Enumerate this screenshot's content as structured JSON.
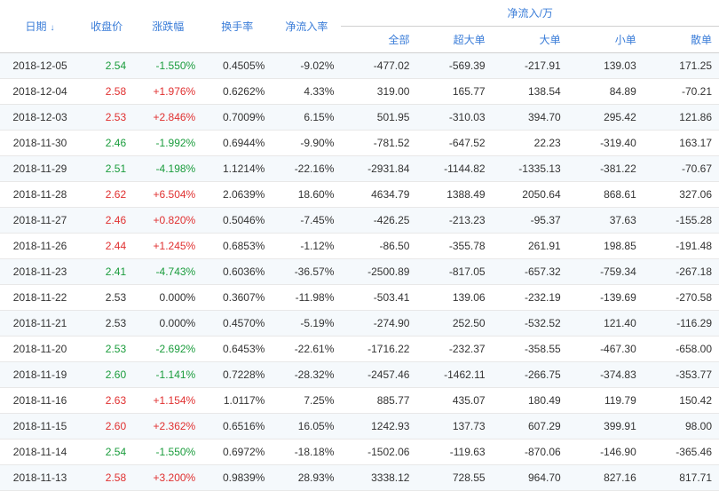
{
  "headers": {
    "date": "日期",
    "close_price": "收盘价",
    "change_pct": "涨跌幅",
    "turnover_rate": "换手率",
    "net_inflow_rate": "净流入率",
    "net_inflow_group": "净流入/万",
    "all": "全部",
    "super_large": "超大单",
    "large": "大单",
    "small": "小单",
    "retail": "散单"
  },
  "colors": {
    "header_text": "#3b7dd8",
    "positive": "#e03030",
    "negative": "#1a9c3c",
    "row_odd_bg": "#f5f9fc",
    "row_even_bg": "#ffffff",
    "border": "#d0d0d0"
  },
  "rows": [
    {
      "date": "2018-12-05",
      "close_price": "2.54",
      "close_dir": "neg",
      "change_pct": "-1.550%",
      "change_dir": "neg",
      "turnover_rate": "0.4505%",
      "net_inflow_rate": "-9.02%",
      "all": "-477.02",
      "super_large": "-569.39",
      "large": "-217.91",
      "small": "139.03",
      "retail": "171.25"
    },
    {
      "date": "2018-12-04",
      "close_price": "2.58",
      "close_dir": "pos",
      "change_pct": "+1.976%",
      "change_dir": "pos",
      "turnover_rate": "0.6262%",
      "net_inflow_rate": "4.33%",
      "all": "319.00",
      "super_large": "165.77",
      "large": "138.54",
      "small": "84.89",
      "retail": "-70.21"
    },
    {
      "date": "2018-12-03",
      "close_price": "2.53",
      "close_dir": "pos",
      "change_pct": "+2.846%",
      "change_dir": "pos",
      "turnover_rate": "0.7009%",
      "net_inflow_rate": "6.15%",
      "all": "501.95",
      "super_large": "-310.03",
      "large": "394.70",
      "small": "295.42",
      "retail": "121.86"
    },
    {
      "date": "2018-11-30",
      "close_price": "2.46",
      "close_dir": "neg",
      "change_pct": "-1.992%",
      "change_dir": "neg",
      "turnover_rate": "0.6944%",
      "net_inflow_rate": "-9.90%",
      "all": "-781.52",
      "super_large": "-647.52",
      "large": "22.23",
      "small": "-319.40",
      "retail": "163.17"
    },
    {
      "date": "2018-11-29",
      "close_price": "2.51",
      "close_dir": "neg",
      "change_pct": "-4.198%",
      "change_dir": "neg",
      "turnover_rate": "1.1214%",
      "net_inflow_rate": "-22.16%",
      "all": "-2931.84",
      "super_large": "-1144.82",
      "large": "-1335.13",
      "small": "-381.22",
      "retail": "-70.67"
    },
    {
      "date": "2018-11-28",
      "close_price": "2.62",
      "close_dir": "pos",
      "change_pct": "+6.504%",
      "change_dir": "pos",
      "turnover_rate": "2.0639%",
      "net_inflow_rate": "18.60%",
      "all": "4634.79",
      "super_large": "1388.49",
      "large": "2050.64",
      "small": "868.61",
      "retail": "327.06"
    },
    {
      "date": "2018-11-27",
      "close_price": "2.46",
      "close_dir": "pos",
      "change_pct": "+0.820%",
      "change_dir": "pos",
      "turnover_rate": "0.5046%",
      "net_inflow_rate": "-7.45%",
      "all": "-426.25",
      "super_large": "-213.23",
      "large": "-95.37",
      "small": "37.63",
      "retail": "-155.28"
    },
    {
      "date": "2018-11-26",
      "close_price": "2.44",
      "close_dir": "pos",
      "change_pct": "+1.245%",
      "change_dir": "pos",
      "turnover_rate": "0.6853%",
      "net_inflow_rate": "-1.12%",
      "all": "-86.50",
      "super_large": "-355.78",
      "large": "261.91",
      "small": "198.85",
      "retail": "-191.48"
    },
    {
      "date": "2018-11-23",
      "close_price": "2.41",
      "close_dir": "neg",
      "change_pct": "-4.743%",
      "change_dir": "neg",
      "turnover_rate": "0.6036%",
      "net_inflow_rate": "-36.57%",
      "all": "-2500.89",
      "super_large": "-817.05",
      "large": "-657.32",
      "small": "-759.34",
      "retail": "-267.18"
    },
    {
      "date": "2018-11-22",
      "close_price": "2.53",
      "close_dir": "neu",
      "change_pct": "0.000%",
      "change_dir": "neu",
      "turnover_rate": "0.3607%",
      "net_inflow_rate": "-11.98%",
      "all": "-503.41",
      "super_large": "139.06",
      "large": "-232.19",
      "small": "-139.69",
      "retail": "-270.58"
    },
    {
      "date": "2018-11-21",
      "close_price": "2.53",
      "close_dir": "neu",
      "change_pct": "0.000%",
      "change_dir": "neu",
      "turnover_rate": "0.4570%",
      "net_inflow_rate": "-5.19%",
      "all": "-274.90",
      "super_large": "252.50",
      "large": "-532.52",
      "small": "121.40",
      "retail": "-116.29"
    },
    {
      "date": "2018-11-20",
      "close_price": "2.53",
      "close_dir": "neg",
      "change_pct": "-2.692%",
      "change_dir": "neg",
      "turnover_rate": "0.6453%",
      "net_inflow_rate": "-22.61%",
      "all": "-1716.22",
      "super_large": "-232.37",
      "large": "-358.55",
      "small": "-467.30",
      "retail": "-658.00"
    },
    {
      "date": "2018-11-19",
      "close_price": "2.60",
      "close_dir": "neg",
      "change_pct": "-1.141%",
      "change_dir": "neg",
      "turnover_rate": "0.7228%",
      "net_inflow_rate": "-28.32%",
      "all": "-2457.46",
      "super_large": "-1462.11",
      "large": "-266.75",
      "small": "-374.83",
      "retail": "-353.77"
    },
    {
      "date": "2018-11-16",
      "close_price": "2.63",
      "close_dir": "pos",
      "change_pct": "+1.154%",
      "change_dir": "pos",
      "turnover_rate": "1.0117%",
      "net_inflow_rate": "7.25%",
      "all": "885.77",
      "super_large": "435.07",
      "large": "180.49",
      "small": "119.79",
      "retail": "150.42"
    },
    {
      "date": "2018-11-15",
      "close_price": "2.60",
      "close_dir": "pos",
      "change_pct": "+2.362%",
      "change_dir": "pos",
      "turnover_rate": "0.6516%",
      "net_inflow_rate": "16.05%",
      "all": "1242.93",
      "super_large": "137.73",
      "large": "607.29",
      "small": "399.91",
      "retail": "98.00"
    },
    {
      "date": "2018-11-14",
      "close_price": "2.54",
      "close_dir": "neg",
      "change_pct": "-1.550%",
      "change_dir": "neg",
      "turnover_rate": "0.6972%",
      "net_inflow_rate": "-18.18%",
      "all": "-1502.06",
      "super_large": "-119.63",
      "large": "-870.06",
      "small": "-146.90",
      "retail": "-365.46"
    },
    {
      "date": "2018-11-13",
      "close_price": "2.58",
      "close_dir": "pos",
      "change_pct": "+3.200%",
      "change_dir": "pos",
      "turnover_rate": "0.9839%",
      "net_inflow_rate": "28.93%",
      "all": "3338.12",
      "super_large": "728.55",
      "large": "964.70",
      "small": "827.16",
      "retail": "817.71"
    }
  ]
}
